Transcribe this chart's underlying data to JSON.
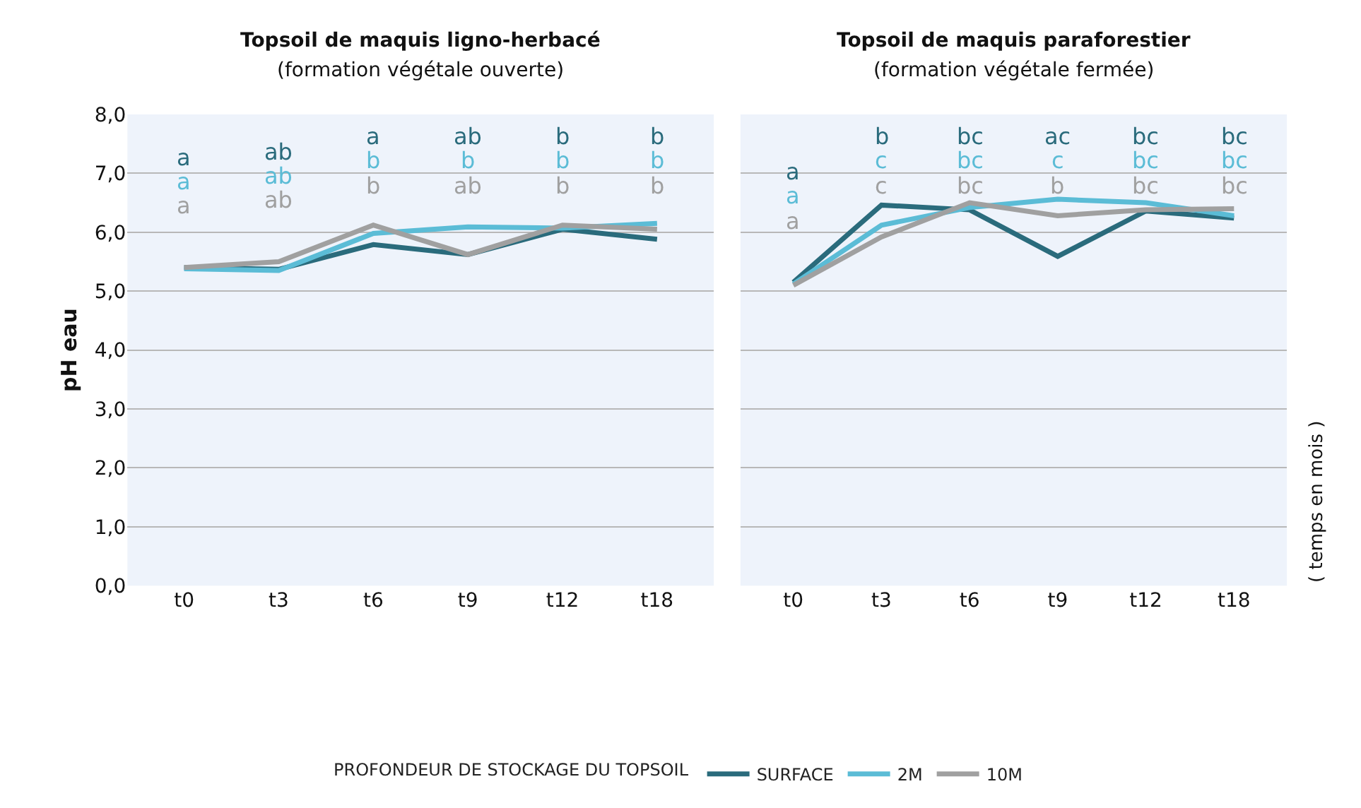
{
  "chart_data": [
    {
      "type": "line",
      "title": "Topsoil de maquis ligno-herbacé",
      "subtitle": "(formation végétale ouverte)",
      "ylabel": "pH eau",
      "legend_title": "PROFONDEUR DE STOCKAGE DU TOPSOIL",
      "legend": "bottom",
      "grid": "y",
      "marker": "none",
      "line_style": "solid",
      "categories": [
        "t0",
        "t3",
        "t6",
        "t9",
        "t12",
        "t18"
      ],
      "ylim": [
        0,
        8
      ],
      "yticks": [
        {
          "value": 0,
          "label": "0,0"
        },
        {
          "value": 1,
          "label": "1,0"
        },
        {
          "value": 2,
          "label": "2,0"
        },
        {
          "value": 3,
          "label": "3,0"
        },
        {
          "value": 4,
          "label": "4,0"
        },
        {
          "value": 5,
          "label": "5,0"
        },
        {
          "value": 6,
          "label": "6,0"
        },
        {
          "value": 7,
          "label": "7,0"
        },
        {
          "value": 8,
          "label": "8,0"
        }
      ],
      "series": [
        {
          "name": "SURFACE",
          "color": "#2a6b7c",
          "values": [
            5.4,
            5.37,
            5.79,
            5.62,
            6.05,
            5.88
          ]
        },
        {
          "name": "2M",
          "color": "#5bbcd6",
          "values": [
            5.38,
            5.35,
            5.98,
            6.09,
            6.07,
            6.15
          ]
        },
        {
          "name": "10M",
          "color": "#a0a0a0",
          "values": [
            5.4,
            5.5,
            6.12,
            5.62,
            6.12,
            6.05
          ]
        }
      ],
      "annotations": [
        "a",
        "ab",
        "a",
        "ab",
        "b",
        "b",
        "a",
        "ab",
        "b",
        "b",
        "b",
        "b",
        "a",
        "ab",
        "b",
        "ab",
        "b",
        "b"
      ]
    },
    {
      "type": "line",
      "title": "Topsoil de maquis paraforestier",
      "subtitle": "(formation végétale fermée)",
      "grid": "y",
      "marker": "none",
      "line_style": "solid",
      "tick_labels": "x",
      "categories": [
        "t0",
        "t3",
        "t6",
        "t9",
        "t12",
        "t18"
      ],
      "ylim": [
        0,
        8
      ],
      "yticks": [
        0,
        1,
        2,
        3,
        4,
        5,
        6,
        7,
        8
      ],
      "series": [
        {
          "color": "#2a6b7c",
          "values": [
            5.15,
            6.46,
            6.38,
            5.59,
            6.36,
            6.24
          ]
        },
        {
          "color": "#5bbcd6",
          "values": [
            5.12,
            6.12,
            6.42,
            6.56,
            6.5,
            6.28
          ]
        },
        {
          "color": "#a0a0a0",
          "values": [
            5.1,
            5.92,
            6.5,
            6.28,
            6.38,
            6.4
          ]
        }
      ],
      "annotations": [
        "a",
        "b",
        "bc",
        "ac",
        "bc",
        "bc",
        "a",
        "c",
        "bc",
        "c",
        "bc",
        "bc",
        "a",
        "c",
        "bc",
        "b",
        "bc",
        "bc",
        "( temps en mois )"
      ]
    }
  ]
}
